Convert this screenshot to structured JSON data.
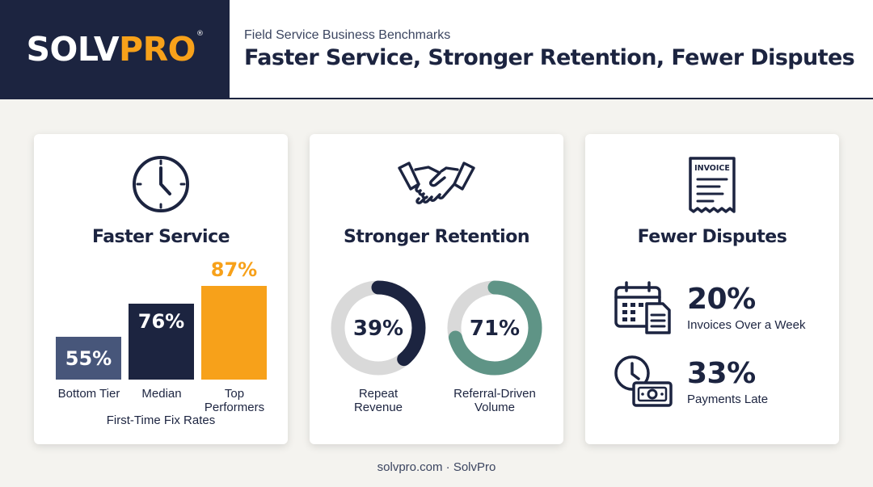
{
  "header": {
    "logo_part1": "SOLV",
    "logo_part2": "PRO",
    "logo_mark": "®",
    "eyebrow": "Field Service Business Benchmarks",
    "headline": "Faster Service, Stronger Retention, Fewer Disputes"
  },
  "colors": {
    "navy": "#1c2440",
    "slate": "#47567a",
    "orange": "#f7a11a",
    "teal": "#5f9486",
    "ring_track": "#d9d9d9"
  },
  "cards": {
    "service": {
      "icon": "clock-icon",
      "title": "Faster Service",
      "caption": "First-Time Fix Rates",
      "bars": [
        {
          "label": "Bottom Tier",
          "display": "55%",
          "value": 55
        },
        {
          "label": "Median",
          "display": "76%",
          "value": 76
        },
        {
          "label": "Top\nPerformers",
          "display": "87%",
          "value": 87
        }
      ]
    },
    "retention": {
      "icon": "handshake-icon",
      "title": "Stronger Retention",
      "donuts": [
        {
          "label": "Repeat\nRevenue",
          "display": "39%",
          "value": 39
        },
        {
          "label": "Referral-Driven\nVolume",
          "display": "71%",
          "value": 71
        }
      ]
    },
    "disputes": {
      "icon": "invoice-icon",
      "icon_text": "INVOICE",
      "title": "Fewer Disputes",
      "stats": [
        {
          "icon": "calendar-document-icon",
          "value": "20%",
          "label": "Invoices Over a Week"
        },
        {
          "icon": "clock-cash-icon",
          "value": "33%",
          "label": "Payments Late"
        }
      ]
    }
  },
  "footer": "solvpro.com · SolvPro"
}
